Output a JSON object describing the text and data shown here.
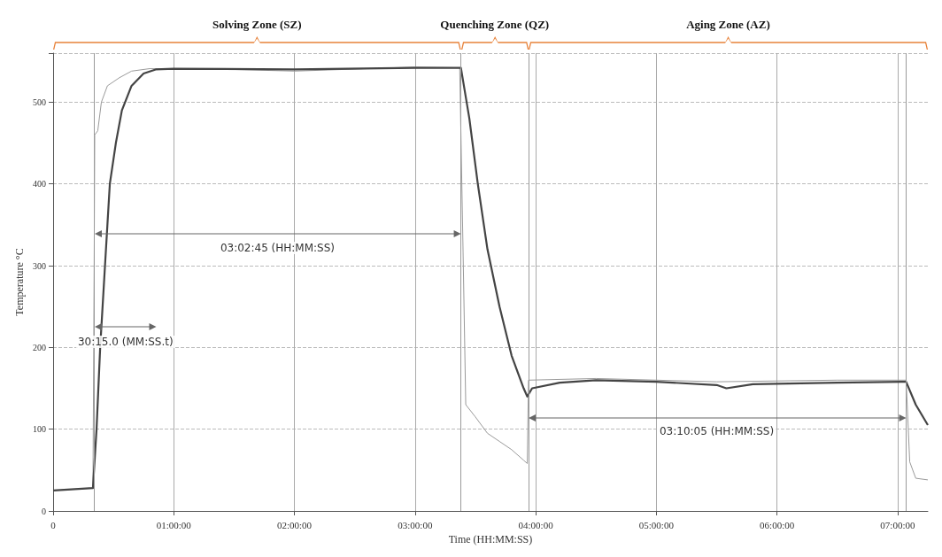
{
  "chart_data": {
    "type": "line",
    "xlabel": "Time (HH:MM:SS)",
    "ylabel": "Temperature °C",
    "xlim": [
      0,
      7.25
    ],
    "xticks": [
      0,
      {
        "value": 1,
        "label": "01:00:00"
      },
      {
        "value": 2,
        "label": "02:00:00"
      },
      {
        "value": 3,
        "label": "03:00:00"
      },
      {
        "value": 4,
        "label": "04:00:00"
      },
      {
        "value": 5,
        "label": "05:00:00"
      },
      {
        "value": 6,
        "label": "06:00:00"
      },
      {
        "value": 7,
        "label": "07:00:00"
      }
    ],
    "ylim": [
      0,
      560
    ],
    "yticks": [
      0,
      100,
      200,
      300,
      400,
      500
    ],
    "grid": true,
    "marker": "none",
    "line_style": "solid",
    "series": [
      {
        "color": "#444444",
        "x": [
          0,
          0.33,
          0.36,
          0.39,
          0.43,
          0.47,
          0.52,
          0.57,
          0.65,
          0.75,
          0.85,
          1.0,
          2.0,
          3.0,
          3.38,
          3.45,
          3.52,
          3.6,
          3.7,
          3.8,
          3.9,
          3.93,
          3.97,
          4.2,
          4.5,
          5.0,
          5.5,
          5.58,
          5.8,
          6.5,
          7.07,
          7.15,
          7.25
        ],
        "values": [
          25,
          28,
          100,
          200,
          300,
          400,
          450,
          490,
          520,
          535,
          540,
          541,
          540,
          542,
          542,
          480,
          400,
          320,
          250,
          190,
          150,
          140,
          150,
          157,
          160,
          158,
          154,
          150,
          155,
          157,
          158,
          130,
          105
        ]
      },
      {
        "color": "#9a9a9a",
        "x": [
          0,
          0.33,
          0.34,
          0.345,
          0.37,
          0.4,
          0.45,
          0.55,
          0.65,
          0.8,
          1.5,
          2.0,
          3.0,
          3.37,
          3.4,
          3.42,
          3.5,
          3.6,
          3.7,
          3.8,
          3.9,
          3.93,
          3.94,
          4.5,
          5.0,
          5.5,
          6.5,
          7.07,
          7.1,
          7.15,
          7.25
        ],
        "values": [
          25,
          28,
          300,
          460,
          465,
          500,
          520,
          530,
          538,
          541,
          540,
          538,
          543,
          542,
          300,
          130,
          115,
          95,
          85,
          75,
          62,
          58,
          160,
          162,
          160,
          158,
          160,
          160,
          60,
          40,
          38
        ]
      }
    ],
    "ref_lines": [
      {
        "axis": "x",
        "value": 0.345,
        "color": "#9a9a9a"
      },
      {
        "axis": "x",
        "value": 3.38,
        "color": "#9a9a9a"
      },
      {
        "axis": "x",
        "value": 3.94,
        "color": "#9a9a9a"
      },
      {
        "axis": "x",
        "value": 7.07,
        "color": "#9a9a9a"
      }
    ],
    "annotations": [
      "Solving Zone (SZ)",
      "Quenching Zone (QZ)",
      "Aging Zone (AZ)",
      "03:02:45 (HH:MM:SS)",
      "30:15.0 (MM:SS.t)",
      "03:10:05 (HH:MM:SS)"
    ]
  }
}
